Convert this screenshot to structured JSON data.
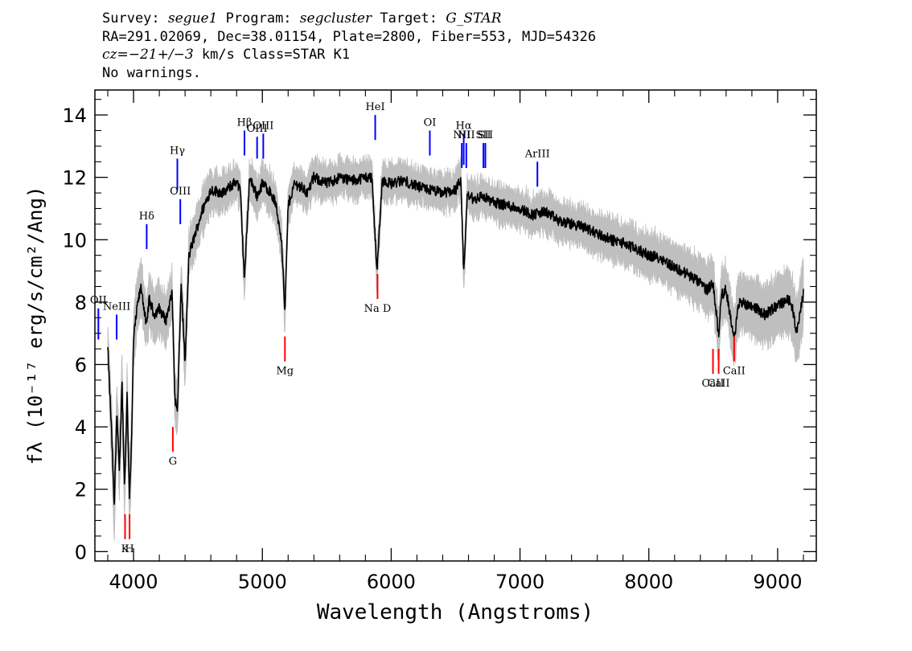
{
  "header": {
    "survey_label": "Survey:",
    "survey": "segue1",
    "program_label": "Program:",
    "program": "segcluster",
    "target_label": "Target:",
    "target": "G_STAR",
    "line2": "RA=291.02069, Dec=38.01154, Plate=2800, Fiber=553, MJD=54326",
    "cz_value": "cz=−21+/−3",
    "cz_rest": "km/s Class=STAR K1",
    "line4": "No warnings."
  },
  "chart_data": {
    "type": "line",
    "xlabel": "Wavelength (Angstroms)",
    "ylabel": "fλ (10⁻¹⁷ erg/s/cm²/Ang)",
    "xlim": [
      3700,
      9300
    ],
    "ylim": [
      -0.3,
      14.8
    ],
    "xticks": [
      4000,
      5000,
      6000,
      7000,
      8000,
      9000
    ],
    "yticks": [
      0,
      2,
      4,
      6,
      8,
      10,
      12,
      14
    ],
    "grid": false,
    "colors": {
      "flux": "#000000",
      "noise": "#bfbfbf",
      "emission": "#0000ff",
      "absorption": "#ff0000"
    },
    "spectrum": {
      "x": [
        3800,
        3830,
        3850,
        3870,
        3890,
        3910,
        3930,
        3950,
        3968,
        3985,
        4000,
        4030,
        4060,
        4100,
        4101,
        4120,
        4160,
        4200,
        4250,
        4300,
        4320,
        4340,
        4370,
        4400,
        4430,
        4480,
        4530,
        4600,
        4700,
        4800,
        4830,
        4861,
        4900,
        4960,
        5000,
        5050,
        5100,
        5150,
        5175,
        5200,
        5250,
        5300,
        5350,
        5400,
        5500,
        5600,
        5700,
        5800,
        5850,
        5890,
        5930,
        6000,
        6100,
        6200,
        6300,
        6400,
        6500,
        6540,
        6563,
        6590,
        6650,
        6700,
        6750,
        6800,
        6900,
        7000,
        7100,
        7200,
        7300,
        7400,
        7500,
        7600,
        7700,
        7800,
        7900,
        8000,
        8100,
        8200,
        8300,
        8400,
        8450,
        8500,
        8542,
        8560,
        8600,
        8662,
        8700,
        8800,
        8900,
        9000,
        9100,
        9150,
        9200
      ],
      "y": [
        6.5,
        3.8,
        1.4,
        4.5,
        2.5,
        5.5,
        2.0,
        5.0,
        1.8,
        3.5,
        6.8,
        7.9,
        8.5,
        7.2,
        7.2,
        8.1,
        7.6,
        7.8,
        7.4,
        8.3,
        5.0,
        4.4,
        8.6,
        6.0,
        9.5,
        10.2,
        10.9,
        11.6,
        11.5,
        11.9,
        11.5,
        8.7,
        12.0,
        11.4,
        11.8,
        11.6,
        11.2,
        10.0,
        7.6,
        11.1,
        11.8,
        11.7,
        11.5,
        12.0,
        11.8,
        12.0,
        11.9,
        12.0,
        12.0,
        9.0,
        11.9,
        11.8,
        11.9,
        11.7,
        11.6,
        11.5,
        11.6,
        11.9,
        8.9,
        11.4,
        11.3,
        11.4,
        11.3,
        11.2,
        11.1,
        11.0,
        10.8,
        10.9,
        10.6,
        10.5,
        10.4,
        10.2,
        10.0,
        9.9,
        9.7,
        9.5,
        9.4,
        9.1,
        8.9,
        8.6,
        8.4,
        8.6,
        6.9,
        8.2,
        8.4,
        6.8,
        8.0,
        7.9,
        7.6,
        7.9,
        8.1,
        7.0,
        8.3
      ],
      "noise": [
        0.5,
        0.8,
        1.0,
        0.8,
        0.8,
        0.8,
        0.8,
        0.8,
        0.8,
        0.8,
        0.7,
        0.6,
        0.6,
        0.6,
        0.6,
        0.6,
        0.55,
        0.55,
        0.55,
        0.5,
        0.6,
        0.6,
        0.5,
        0.6,
        0.5,
        0.45,
        0.45,
        0.4,
        0.35,
        0.35,
        0.35,
        0.4,
        0.35,
        0.35,
        0.35,
        0.35,
        0.35,
        0.4,
        0.45,
        0.35,
        0.3,
        0.3,
        0.3,
        0.3,
        0.3,
        0.3,
        0.3,
        0.3,
        0.3,
        0.4,
        0.3,
        0.3,
        0.3,
        0.3,
        0.3,
        0.3,
        0.3,
        0.3,
        0.4,
        0.3,
        0.3,
        0.3,
        0.3,
        0.3,
        0.3,
        0.3,
        0.35,
        0.35,
        0.35,
        0.35,
        0.35,
        0.4,
        0.4,
        0.4,
        0.4,
        0.45,
        0.45,
        0.5,
        0.5,
        0.55,
        0.55,
        0.6,
        0.6,
        0.6,
        0.6,
        0.6,
        0.65,
        0.65,
        0.7,
        0.7,
        0.75,
        0.8,
        0.8
      ]
    },
    "emission_lines": [
      {
        "label": "OII",
        "x": 3727,
        "y": 6.8,
        "len": 1.0
      },
      {
        "label": "NeIII",
        "x": 3869,
        "y": 6.8,
        "len": 0.8
      },
      {
        "label": "Hδ",
        "x": 4102,
        "y": 9.7,
        "len": 0.8
      },
      {
        "label": "Hγ",
        "x": 4340,
        "y": 11.6,
        "len": 1.0
      },
      {
        "label": "OIII",
        "x": 4363,
        "y": 10.5,
        "len": 0.8
      },
      {
        "label": "Hβ",
        "x": 4861,
        "y": 12.7,
        "len": 0.8
      },
      {
        "label": "OIII",
        "x": 4959,
        "y": 12.6,
        "len": 0.7
      },
      {
        "label": "OIII",
        "x": 5007,
        "y": 12.6,
        "len": 0.8
      },
      {
        "label": "HeI",
        "x": 5876,
        "y": 13.2,
        "len": 0.8
      },
      {
        "label": "OI",
        "x": 6300,
        "y": 12.7,
        "len": 0.8
      },
      {
        "label": "NII",
        "x": 6548,
        "y": 12.3,
        "len": 0.8
      },
      {
        "label": "Hα",
        "x": 6563,
        "y": 12.4,
        "len": 1.0
      },
      {
        "label": "NII",
        "x": 6583,
        "y": 12.3,
        "len": 0.8
      },
      {
        "label": "SII",
        "x": 6716,
        "y": 12.3,
        "len": 0.8
      },
      {
        "label": "SII",
        "x": 6731,
        "y": 12.3,
        "len": 0.8
      },
      {
        "label": "ArIII",
        "x": 7135,
        "y": 11.7,
        "len": 0.8
      }
    ],
    "absorption_lines": [
      {
        "label": "K",
        "x": 3934,
        "y": 0.4,
        "len": 0.8
      },
      {
        "label": "H",
        "x": 3969,
        "y": 0.4,
        "len": 0.8
      },
      {
        "label": "G",
        "x": 4305,
        "y": 3.2,
        "len": 0.8
      },
      {
        "label": "Mg",
        "x": 5175,
        "y": 6.1,
        "len": 0.8
      },
      {
        "label": "Na D",
        "x": 5894,
        "y": 8.1,
        "len": 0.8
      },
      {
        "label": "CaII",
        "x": 8498,
        "y": 5.7,
        "len": 0.8
      },
      {
        "label": "CaII",
        "x": 8542,
        "y": 5.7,
        "len": 0.8
      },
      {
        "label": "CaII",
        "x": 8662,
        "y": 6.1,
        "len": 0.8
      }
    ]
  }
}
